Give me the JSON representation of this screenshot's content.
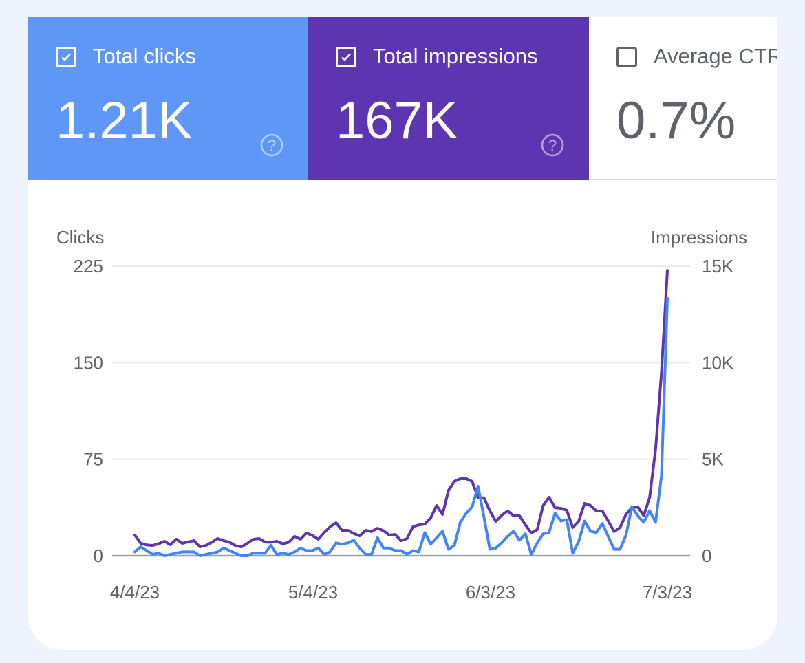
{
  "tiles": [
    {
      "label": "Total clicks",
      "value": "1.21K",
      "checked": true,
      "color": "#5e97f6"
    },
    {
      "label": "Total impressions",
      "value": "167K",
      "checked": true,
      "color": "#5e35b1"
    },
    {
      "label": "Average CTR",
      "value": "0.7%",
      "checked": false,
      "color": "#ffffff"
    }
  ],
  "chart_data": {
    "type": "line",
    "ylabel_left": "Clicks",
    "ylabel_right": "Impressions",
    "yticks_left": [
      "0",
      "75",
      "150",
      "225"
    ],
    "yticks_right": [
      "0",
      "5K",
      "10K",
      "15K"
    ],
    "ylim_left": [
      0,
      225
    ],
    "ylim_right": [
      0,
      15000
    ],
    "xticks": [
      "4/4/23",
      "5/4/23",
      "6/3/23",
      "7/3/23"
    ],
    "grid": true,
    "x": [
      "2023-04-04",
      "2023-04-05",
      "2023-04-06",
      "2023-04-07",
      "2023-04-08",
      "2023-04-09",
      "2023-04-10",
      "2023-04-11",
      "2023-04-12",
      "2023-04-13",
      "2023-04-14",
      "2023-04-15",
      "2023-04-16",
      "2023-04-17",
      "2023-04-18",
      "2023-04-19",
      "2023-04-20",
      "2023-04-21",
      "2023-04-22",
      "2023-04-23",
      "2023-04-24",
      "2023-04-25",
      "2023-04-26",
      "2023-04-27",
      "2023-04-28",
      "2023-04-29",
      "2023-04-30",
      "2023-05-01",
      "2023-05-02",
      "2023-05-03",
      "2023-05-04",
      "2023-05-05",
      "2023-05-06",
      "2023-05-07",
      "2023-05-08",
      "2023-05-09",
      "2023-05-10",
      "2023-05-11",
      "2023-05-12",
      "2023-05-13",
      "2023-05-14",
      "2023-05-15",
      "2023-05-16",
      "2023-05-17",
      "2023-05-18",
      "2023-05-19",
      "2023-05-20",
      "2023-05-21",
      "2023-05-22",
      "2023-05-23",
      "2023-05-24",
      "2023-05-25",
      "2023-05-26",
      "2023-05-27",
      "2023-05-28",
      "2023-05-29",
      "2023-05-30",
      "2023-05-31",
      "2023-06-01",
      "2023-06-02",
      "2023-06-03",
      "2023-06-04",
      "2023-06-05",
      "2023-06-06",
      "2023-06-07",
      "2023-06-08",
      "2023-06-09",
      "2023-06-10",
      "2023-06-11",
      "2023-06-12",
      "2023-06-13",
      "2023-06-14",
      "2023-06-15",
      "2023-06-16",
      "2023-06-17",
      "2023-06-18",
      "2023-06-19",
      "2023-06-20",
      "2023-06-21",
      "2023-06-22",
      "2023-06-23",
      "2023-06-24",
      "2023-06-25",
      "2023-06-26",
      "2023-06-27",
      "2023-06-28",
      "2023-06-29",
      "2023-06-30",
      "2023-07-01",
      "2023-07-02",
      "2023-07-03"
    ],
    "series": [
      {
        "name": "Clicks",
        "axis": "left",
        "color": "#4285f4",
        "values": [
          3,
          7,
          4,
          1,
          2,
          0,
          1,
          2,
          3,
          3,
          3,
          0,
          1,
          2,
          3,
          6,
          4,
          2,
          0,
          0,
          2,
          2,
          2,
          8,
          1,
          2,
          1,
          3,
          6,
          4,
          4,
          6,
          1,
          3,
          10,
          9,
          10,
          12,
          6,
          1,
          1,
          14,
          6,
          6,
          4,
          4,
          1,
          4,
          3,
          18,
          9,
          14,
          19,
          5,
          8,
          26,
          33,
          38,
          54,
          30,
          5,
          6,
          10,
          15,
          19,
          12,
          17,
          1,
          10,
          17,
          18,
          33,
          27,
          28,
          2,
          11,
          27,
          19,
          18,
          25,
          15,
          5,
          5,
          16,
          38,
          31,
          26,
          35,
          26,
          62,
          200
        ]
      },
      {
        "name": "Impressions",
        "axis": "right",
        "color": "#5e35b1",
        "values": [
          1070,
          640,
          560,
          530,
          620,
          750,
          570,
          860,
          640,
          720,
          780,
          460,
          530,
          700,
          890,
          780,
          700,
          520,
          460,
          640,
          850,
          890,
          710,
          700,
          750,
          620,
          700,
          1000,
          860,
          1180,
          1050,
          860,
          1200,
          1500,
          1710,
          1320,
          1320,
          1150,
          1030,
          1320,
          1250,
          1420,
          1300,
          1070,
          1100,
          780,
          890,
          1500,
          1600,
          1640,
          1960,
          2600,
          2140,
          3380,
          3850,
          3990,
          3990,
          3850,
          3000,
          3000,
          2320,
          1780,
          2100,
          2320,
          2070,
          2070,
          1600,
          1180,
          1350,
          2600,
          3030,
          2490,
          2460,
          2350,
          1460,
          1780,
          2710,
          2600,
          2320,
          2320,
          1800,
          1250,
          1460,
          2140,
          2490,
          2530,
          2070,
          3030,
          5500,
          9500,
          14780
        ]
      }
    ]
  }
}
